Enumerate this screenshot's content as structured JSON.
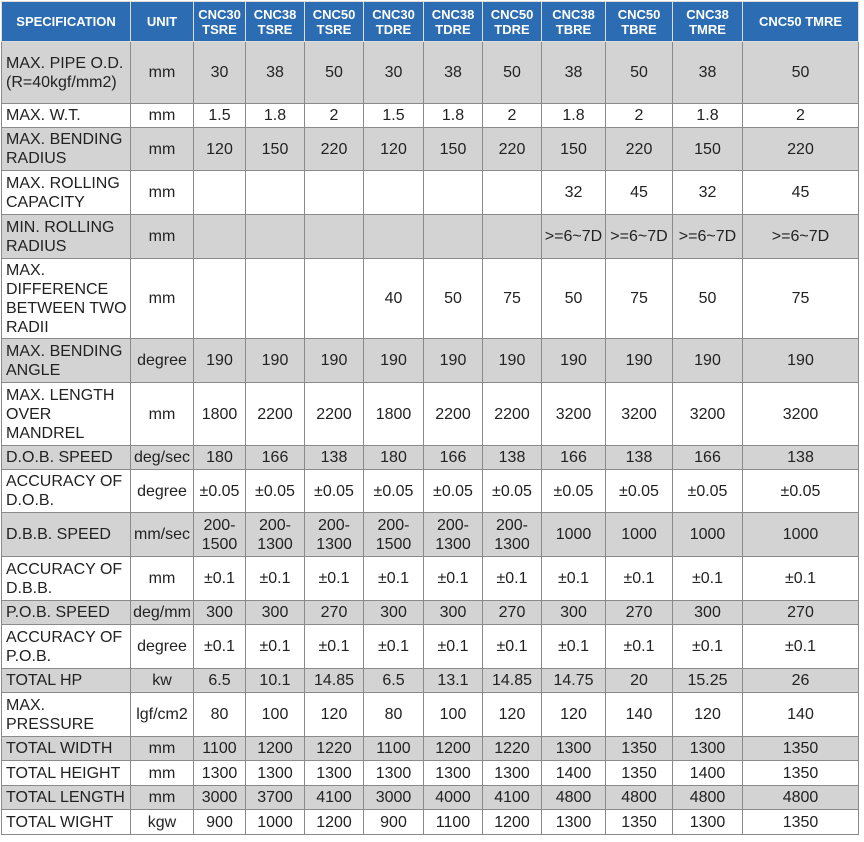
{
  "table": {
    "header": [
      "SPECIFICATION",
      "UNIT",
      "CNC30 TSRE",
      "CNC38 TSRE",
      "CNC50 TSRE",
      "CNC30 TDRE",
      "CNC38 TDRE",
      "CNC50 TDRE",
      "CNC38 TBRE",
      "CNC50 TBRE",
      "CNC38 TMRE",
      "CNC50 TMRE"
    ],
    "rows": [
      [
        "MAX. PIPE O.D. (R=40kgf/mm2)",
        "mm",
        "30",
        "38",
        "50",
        "30",
        "38",
        "50",
        "38",
        "50",
        "38",
        "50"
      ],
      [
        "MAX. W.T.",
        "mm",
        "1.5",
        "1.8",
        "2",
        "1.5",
        "1.8",
        "2",
        "1.8",
        "2",
        "1.8",
        "2"
      ],
      [
        "MAX. BENDING RADIUS",
        "mm",
        "120",
        "150",
        "220",
        "120",
        "150",
        "220",
        "150",
        "220",
        "150",
        "220"
      ],
      [
        "MAX. ROLLING CAPACITY",
        "mm",
        null,
        null,
        null,
        null,
        null,
        null,
        "32",
        "45",
        "32",
        "45"
      ],
      [
        "MIN. ROLLING RADIUS",
        "mm",
        null,
        null,
        null,
        null,
        null,
        null,
        ">=6~7D",
        ">=6~7D",
        ">=6~7D",
        ">=6~7D"
      ],
      [
        "MAX. DIFFERENCE BETWEEN TWO RADII",
        "mm",
        null,
        null,
        null,
        "40",
        "50",
        "75",
        "50",
        "75",
        "50",
        "75"
      ],
      [
        "MAX. BENDING ANGLE",
        "degree",
        "190",
        "190",
        "190",
        "190",
        "190",
        "190",
        "190",
        "190",
        "190",
        "190"
      ],
      [
        "MAX. LENGTH OVER MANDREL",
        "mm",
        "1800",
        "2200",
        "2200",
        "1800",
        "2200",
        "2200",
        "3200",
        "3200",
        "3200",
        "3200"
      ],
      [
        "D.O.B. SPEED",
        "deg/sec",
        "180",
        "166",
        "138",
        "180",
        "166",
        "138",
        "166",
        "138",
        "166",
        "138"
      ],
      [
        "ACCURACY OF D.O.B.",
        "degree",
        "±0.05",
        "±0.05",
        "±0.05",
        "±0.05",
        "±0.05",
        "±0.05",
        "±0.05",
        "±0.05",
        "±0.05",
        "±0.05"
      ],
      [
        "D.B.B. SPEED",
        "mm/sec",
        "200-1500",
        "200-1300",
        "200-1300",
        "200-1500",
        "200-1300",
        "200-1300",
        "1000",
        "1000",
        "1000",
        "1000"
      ],
      [
        "ACCURACY OF D.B.B.",
        "mm",
        "±0.1",
        "±0.1",
        "±0.1",
        "±0.1",
        "±0.1",
        "±0.1",
        "±0.1",
        "±0.1",
        "±0.1",
        "±0.1"
      ],
      [
        "P.O.B. SPEED",
        "deg/mm",
        "300",
        "300",
        "270",
        "300",
        "300",
        "270",
        "300",
        "270",
        "300",
        "270"
      ],
      [
        "ACCURACY OF P.O.B.",
        "degree",
        "±0.1",
        "±0.1",
        "±0.1",
        "±0.1",
        "±0.1",
        "±0.1",
        "±0.1",
        "±0.1",
        "±0.1",
        "±0.1"
      ],
      [
        "TOTAL HP",
        "kw",
        "6.5",
        "10.1",
        "14.85",
        "6.5",
        "13.1",
        "14.85",
        "14.75",
        "20",
        "15.25",
        "26"
      ],
      [
        "MAX. PRESSURE",
        "lgf/cm2",
        "80",
        "100",
        "120",
        "80",
        "100",
        "120",
        "120",
        "140",
        "120",
        "140"
      ],
      [
        "TOTAL WIDTH",
        "mm",
        "1100",
        "1200",
        "1220",
        "1100",
        "1200",
        "1220",
        "1300",
        "1350",
        "1300",
        "1350"
      ],
      [
        "TOTAL HEIGHT",
        "mm",
        "1300",
        "1300",
        "1300",
        "1300",
        "1300",
        "1300",
        "1400",
        "1350",
        "1400",
        "1350"
      ],
      [
        "TOTAL LENGTH",
        "mm",
        "3000",
        "3700",
        "4100",
        "3000",
        "4000",
        "4100",
        "4800",
        "4800",
        "4800",
        "4800"
      ],
      [
        "TOTAL WIGHT",
        "kgw",
        "900",
        "1000",
        "1200",
        "900",
        "1100",
        "1200",
        "1300",
        "1350",
        "1300",
        "1350"
      ]
    ]
  }
}
